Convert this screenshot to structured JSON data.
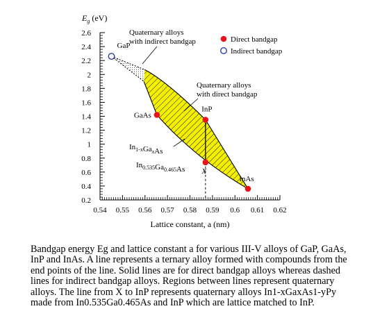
{
  "chart_data": {
    "type": "scatter",
    "ylabel": "E_g (eV)",
    "xlabel": "Lattice constant, a (nm)",
    "xlim": [
      0.54,
      0.62
    ],
    "ylim": [
      0.2,
      2.6
    ],
    "x_ticks": [
      "0.54",
      "0.55",
      "0.56",
      "0.57",
      "0.58",
      "0.59",
      "0.6",
      "0.61",
      "0.62"
    ],
    "y_ticks": [
      "0.2",
      "0.4",
      "0.6",
      "0.8",
      "1",
      "1.2",
      "1.4",
      "1.6",
      "1.8",
      "2",
      "2.2",
      "2.4",
      "2.6"
    ],
    "points": [
      {
        "id": "GaP",
        "label": "GaP",
        "x": 0.5451,
        "y": 2.26,
        "type": "indirect"
      },
      {
        "id": "GaAs",
        "label": "GaAs",
        "x": 0.5653,
        "y": 1.42,
        "type": "direct"
      },
      {
        "id": "InP",
        "label": "InP",
        "x": 0.5869,
        "y": 1.35,
        "type": "direct"
      },
      {
        "id": "InAs",
        "label": "InAs",
        "x": 0.6058,
        "y": 0.36,
        "type": "direct"
      },
      {
        "id": "X",
        "label": "X",
        "x": 0.5869,
        "y": 0.74,
        "type": "direct"
      }
    ],
    "legend": [
      {
        "label": "Direct bandgap",
        "marker": "filled-circle",
        "color": "#e8141a"
      },
      {
        "label": "Indirect bandgap",
        "marker": "open-circle",
        "color": "#2b3fa8"
      }
    ],
    "legend_position": "top-right",
    "annotations": {
      "quat_indirect": [
        "Quaternary alloys",
        "with indirect bandgap"
      ],
      "quat_direct": [
        "Quaternary alloys",
        "with direct bandgap"
      ],
      "ingaas": "In1-xGaxAs",
      "ingaas_match": "In0.535Ga0.465As"
    },
    "colors": {
      "region_fill": "#f4f000",
      "direct": "#e8141a",
      "indirect": "#2b3fa8"
    }
  },
  "caption": "Bandgap energy Eg and lattice constant a for various III-V alloys of GaP, GaAs, InP and InAs. A line represents a ternary alloy formed with compounds from the end points of the line. Solid lines are for direct bandgap alloys whereas dashed lines for indirect bandgap alloys. Regions between lines represent quaternary alloys. The line from X to InP represents quaternary alloys In1-xGaxAs1-yPy made from In0.535Ga0.465As and InP which are lattice matched to InP."
}
